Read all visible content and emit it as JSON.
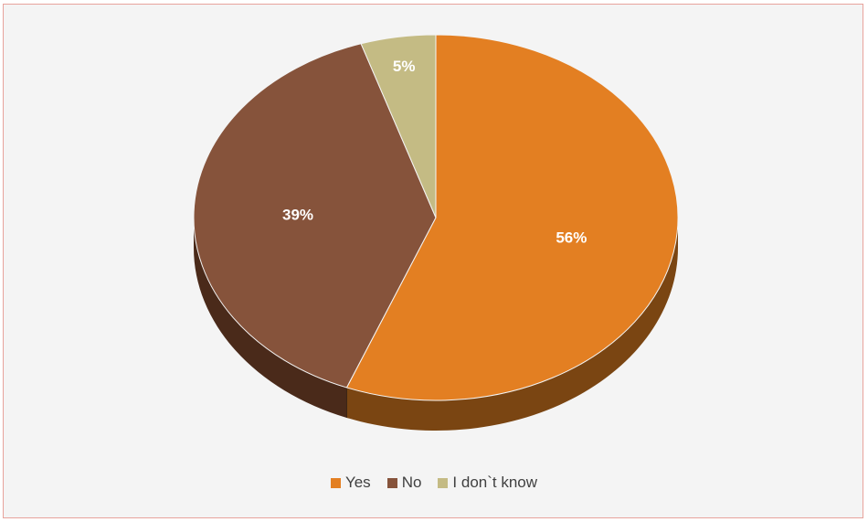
{
  "chart_data": {
    "type": "pie",
    "title": "",
    "categories": [
      "Yes",
      "No",
      "I don`t know"
    ],
    "values": [
      56,
      39,
      5
    ],
    "labels": [
      "56%",
      "39%",
      "5%"
    ],
    "colors": [
      "#e37f22",
      "#86533b",
      "#c4bb84"
    ],
    "side_colors": [
      "#7a4512",
      "#4a2a1a",
      "#6c6640"
    ],
    "legend_position": "bottom-center",
    "style": "3d"
  }
}
